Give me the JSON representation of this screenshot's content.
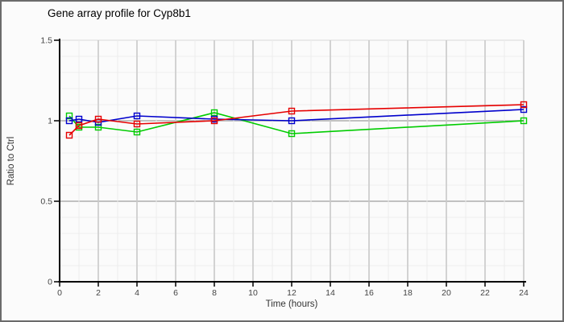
{
  "window": {
    "background": "#fbfbfb",
    "border_color": "#6b6b6b"
  },
  "chart_data": {
    "type": "line",
    "title": "Gene array profile for Cyp8b1",
    "xlabel": "Time (hours)",
    "ylabel": "Ratio to Ctrl",
    "xlim": [
      0,
      24
    ],
    "ylim": [
      0,
      1.5
    ],
    "x_ticks": [
      0,
      2,
      4,
      6,
      8,
      10,
      12,
      14,
      16,
      18,
      20,
      22,
      24
    ],
    "y_ticks": [
      {
        "value": 0,
        "label": "0"
      },
      {
        "value": 0.5,
        "label": "0.5"
      },
      {
        "value": 1,
        "label": "1"
      },
      {
        "value": 1.5,
        "label": "1.5"
      }
    ],
    "grid": "on",
    "legend": "none",
    "marker": "open-square",
    "x": [
      0.5,
      1,
      2,
      4,
      8,
      12,
      24
    ],
    "series": [
      {
        "name": "green",
        "color": "#00cc00",
        "values": [
          1.03,
          0.96,
          0.96,
          0.93,
          1.05,
          0.92,
          1.0
        ]
      },
      {
        "name": "blue",
        "color": "#0000cc",
        "values": [
          1.0,
          1.01,
          0.99,
          1.03,
          1.01,
          1.0,
          1.07
        ]
      },
      {
        "name": "red",
        "color": "#e60000",
        "values": [
          0.91,
          0.97,
          1.01,
          0.98,
          1.0,
          1.06,
          1.1
        ]
      }
    ]
  }
}
